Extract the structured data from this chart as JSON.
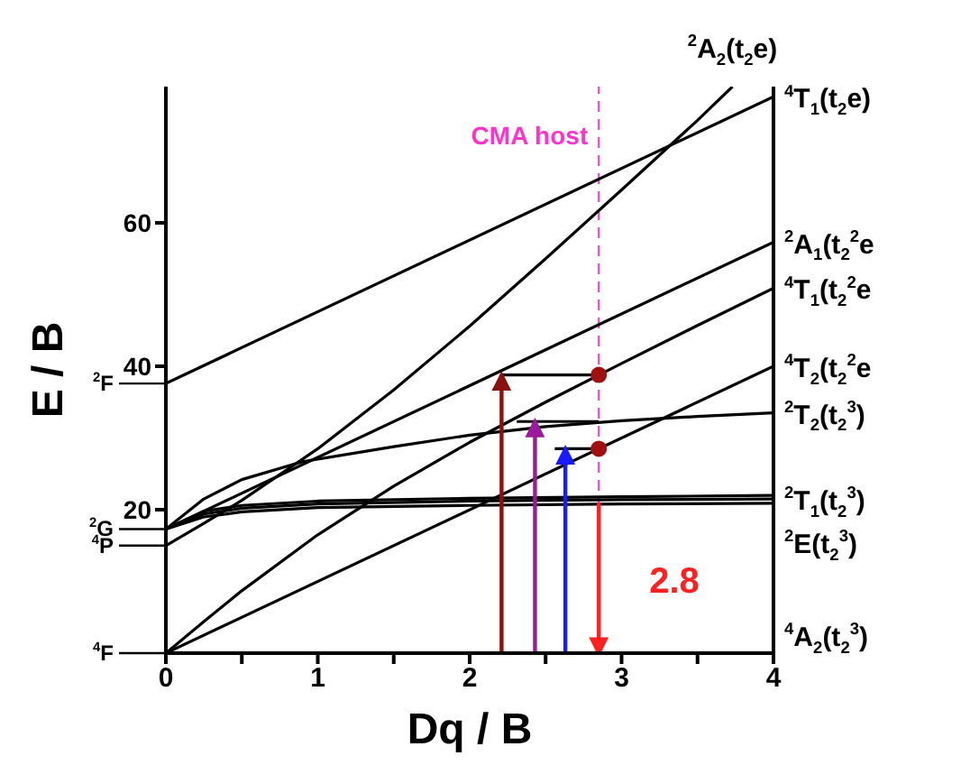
{
  "chart_data": {
    "type": "line",
    "xlabel": "Dq / B",
    "ylabel": "E / B",
    "xlim": [
      0,
      4
    ],
    "ylim": [
      0,
      79
    ],
    "xticks": [
      0,
      {
        "value": 0.5,
        "label": null
      },
      1,
      {
        "value": 1.5,
        "label": null
      },
      2,
      {
        "value": 2.5,
        "label": null
      },
      3,
      {
        "value": 3.5,
        "label": null
      },
      4
    ],
    "yticks": [
      20,
      40,
      60
    ],
    "grid": false,
    "marker": "none",
    "series": [
      {
        "color": "#000000",
        "x": [
          0,
          4
        ],
        "values": [
          0,
          40
        ]
      },
      {
        "color": "#000000",
        "x": [
          0,
          0.25,
          0.5,
          1,
          1.5,
          2,
          2.5,
          3,
          3.5,
          4
        ],
        "values": [
          0,
          4.4,
          8.7,
          16.5,
          23.3,
          29.4,
          35.0,
          40.4,
          45.7,
          50.9
        ]
      },
      {
        "color": "#000000",
        "x": [
          0,
          0.25,
          0.5,
          1,
          1.5,
          2,
          2.5,
          3,
          3.5,
          3.73
        ],
        "values": [
          15,
          18.1,
          21.3,
          28.5,
          36.7,
          45.6,
          55,
          64.6,
          74.3,
          79
        ]
      },
      {
        "color": "#000000",
        "x": [
          0,
          4
        ],
        "values": [
          37.6,
          77.6
        ]
      },
      {
        "color": "#000000",
        "x": [
          0,
          4
        ],
        "values": [
          17.3,
          57.3
        ]
      },
      {
        "color": "#000000",
        "x": [
          0,
          0.25,
          0.5,
          0.9,
          1.5,
          2,
          2.5,
          3,
          3.5,
          4
        ],
        "values": [
          17.3,
          21.5,
          24.2,
          26.7,
          28.8,
          30.4,
          31.6,
          32.4,
          33.0,
          33.5
        ]
      },
      {
        "color": "#000000",
        "x": [
          0,
          0.25,
          0.5,
          1,
          2,
          3,
          4
        ],
        "values": [
          17.3,
          19.0,
          19.7,
          20.3,
          20.6,
          20.8,
          20.9
        ]
      },
      {
        "color": "#000000",
        "x": [
          0,
          0.25,
          0.5,
          1,
          2,
          3,
          4
        ],
        "values": [
          17.3,
          19.4,
          20.2,
          20.8,
          21.2,
          21.4,
          21.5
        ]
      },
      {
        "color": "#000000",
        "x": [
          0,
          0.25,
          0.5,
          1,
          2,
          3,
          4
        ],
        "values": [
          17.3,
          19.8,
          20.6,
          21.2,
          21.6,
          21.8,
          22.0
        ]
      },
      {
        "color": "#000000",
        "x": [
          2.21,
          2.85
        ],
        "values": [
          38.8,
          38.8
        ]
      },
      {
        "color": "#000000",
        "x": [
          2.31,
          2.85
        ],
        "values": [
          32.3,
          32.3
        ]
      },
      {
        "color": "#000000",
        "x": [
          2.56,
          2.85
        ],
        "values": [
          28.5,
          28.5
        ]
      },
      {
        "color": "#8b1010",
        "x": [
          2.21,
          2.21
        ],
        "values": [
          0,
          38.8
        ]
      },
      {
        "color": "#9b1b9b",
        "x": [
          2.43,
          2.43
        ],
        "values": [
          0,
          32.3
        ]
      },
      {
        "color": "#1a1aff",
        "x": [
          2.63,
          2.63
        ],
        "values": [
          0,
          28.5
        ]
      },
      {
        "color": "#ff2020",
        "x": [
          2.85,
          2.85
        ],
        "values": [
          21,
          0
        ]
      },
      {
        "type": "scatter",
        "color": "#a01010",
        "x": [
          2.85,
          2.85
        ],
        "values": [
          38.8,
          28.5
        ],
        "marker": "circle"
      }
    ],
    "ref_lines": [
      {
        "axis": "x",
        "value": 2.85,
        "label": "CMA host",
        "color": "#ff33cc",
        "line_style": "dashed"
      }
    ],
    "annotations": [
      {
        "text": "$^{4}$F",
        "x": 0,
        "y": 0
      },
      {
        "text": "$^{4}$P",
        "x": 0,
        "y": 15
      },
      {
        "text": "$^{2}$G",
        "x": 0,
        "y": 17.3
      },
      {
        "text": "$^{2}$F",
        "x": 0,
        "y": 37.6
      },
      {
        "text": "$^{2}$A$_{2}$(t$_{2}$e)",
        "x": 3.73,
        "y": 79
      },
      {
        "text": "$^{4}$T$_{1}$(t$_{2}$e)",
        "x": 4,
        "y": 77.6
      },
      {
        "text": "$^{2}$A$_{1}$(t$_{2}$$^{2}$e",
        "x": 4,
        "y": 57.3
      },
      {
        "text": "$^{4}$T$_{1}$(t$_{2}$$^{2}$e",
        "x": 4,
        "y": 50.9
      },
      {
        "text": "$^{4}$T$_{2}$(t$_{2}$$^{2}$e",
        "x": 4,
        "y": 40
      },
      {
        "text": "$^{2}$T$_{2}$(t$_{2}$$^{3}$)",
        "x": 4,
        "y": 33.5
      },
      {
        "text": "$^{2}$T$_{1}$(t$_{2}$$^{3}$)",
        "x": 4,
        "y": 21.5
      },
      {
        "text": "$^{2}$E(t$_{2}$$^{3}$)",
        "x": 4,
        "y": 20.9
      },
      "$^{4}$A$_{2}$(t$_{2}$$^{3}$)",
      {
        "text": "2.8",
        "x": 2.85,
        "y": 10
      }
    ]
  }
}
